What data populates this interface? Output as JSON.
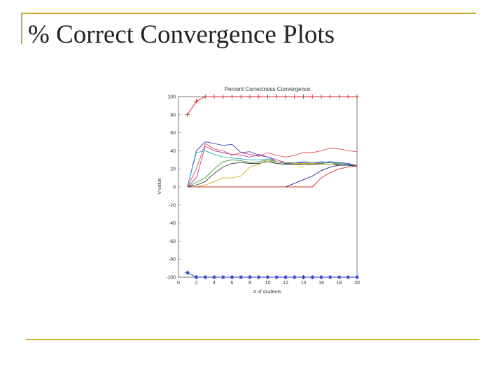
{
  "slide": {
    "title": "% Correct Convergence Plots"
  },
  "colors": {
    "accent_rule": "#c8b030"
  },
  "chart_data": {
    "type": "line",
    "title": "Percent Correctness Convergence",
    "xlabel": "# of students",
    "ylabel": "V-value",
    "xlim": [
      0,
      20
    ],
    "ylim": [
      -100,
      100
    ],
    "xticks": [
      0,
      2,
      4,
      6,
      8,
      10,
      12,
      14,
      16,
      18,
      20
    ],
    "yticks": [
      100,
      80,
      60,
      40,
      20,
      0,
      -20,
      -40,
      -60,
      -80,
      -100
    ],
    "grid": false,
    "legend": "none",
    "series": [
      {
        "color": "#d42020",
        "marker": "+",
        "x": [
          1,
          2,
          3,
          4,
          5,
          6,
          7,
          8,
          9,
          10,
          11,
          12,
          13,
          14,
          15,
          16,
          17,
          18,
          19,
          20
        ],
        "y": [
          80,
          95,
          100,
          100,
          100,
          100,
          100,
          100,
          100,
          100,
          100,
          100,
          100,
          100,
          100,
          100,
          100,
          100,
          100,
          100
        ]
      },
      {
        "color": "#2030c0",
        "marker": "*",
        "x": [
          1,
          2,
          3,
          4,
          5,
          6,
          7,
          8,
          9,
          10,
          11,
          12,
          13,
          14,
          15,
          16,
          17,
          18,
          19,
          20
        ],
        "y": [
          -95,
          -100,
          -100,
          -100,
          -100,
          -100,
          -100,
          -100,
          -100,
          -100,
          -100,
          -100,
          -100,
          -100,
          -100,
          -100,
          -100,
          -100,
          -100,
          -100
        ]
      },
      {
        "color": "#4040c0",
        "x": [
          1,
          2,
          3,
          4,
          5,
          6,
          7,
          8,
          9,
          10,
          11,
          12,
          13,
          14,
          15,
          16,
          17,
          18,
          19,
          20
        ],
        "y": [
          0,
          40,
          50,
          48,
          46,
          47,
          38,
          39,
          35,
          33,
          28,
          26,
          26,
          28,
          27,
          27,
          28,
          27,
          26,
          24
        ]
      },
      {
        "color": "#e05050",
        "x": [
          1,
          2,
          3,
          4,
          5,
          6,
          7,
          8,
          9,
          10,
          11,
          12,
          13,
          14,
          15,
          16,
          17,
          18,
          19,
          20
        ],
        "y": [
          0,
          20,
          48,
          42,
          40,
          35,
          38,
          36,
          34,
          38,
          35,
          33,
          35,
          38,
          38,
          40,
          43,
          42,
          40,
          39
        ]
      },
      {
        "color": "#b040b0",
        "x": [
          1,
          2,
          3,
          4,
          5,
          6,
          7,
          8,
          9,
          10,
          11,
          12,
          13,
          14,
          15,
          16,
          17,
          18,
          19,
          20
        ],
        "y": [
          0,
          10,
          45,
          40,
          38,
          36,
          35,
          33,
          36,
          33,
          30,
          27,
          26,
          27,
          26,
          26,
          27,
          26,
          25,
          24
        ]
      },
      {
        "color": "#30b0c0",
        "x": [
          1,
          2,
          3,
          4,
          5,
          6,
          7,
          8,
          9,
          10,
          11,
          12,
          13,
          14,
          15,
          16,
          17,
          18,
          19,
          20
        ],
        "y": [
          0,
          38,
          40,
          36,
          33,
          32,
          31,
          30,
          30,
          31,
          28,
          27,
          27,
          28,
          27,
          28,
          27,
          26,
          25,
          24
        ]
      },
      {
        "color": "#30a030",
        "x": [
          1,
          2,
          3,
          4,
          5,
          6,
          7,
          8,
          9,
          10,
          11,
          12,
          13,
          14,
          15,
          16,
          17,
          18,
          19,
          20
        ],
        "y": [
          0,
          5,
          10,
          20,
          28,
          30,
          29,
          27,
          28,
          30,
          26,
          25,
          25,
          26,
          25,
          26,
          27,
          25,
          24,
          23
        ]
      },
      {
        "color": "#404040",
        "x": [
          1,
          2,
          3,
          4,
          5,
          6,
          7,
          8,
          9,
          10,
          11,
          12,
          13,
          14,
          15,
          16,
          17,
          18,
          19,
          20
        ],
        "y": [
          0,
          2,
          6,
          15,
          22,
          26,
          27,
          26,
          26,
          28,
          26,
          25,
          25,
          25,
          25,
          25,
          25,
          24,
          24,
          23
        ]
      },
      {
        "color": "#d0b020",
        "x": [
          1,
          2,
          3,
          4,
          5,
          6,
          7,
          8,
          9,
          10,
          11,
          12,
          13,
          14,
          15,
          16,
          17,
          18,
          19,
          20
        ],
        "y": [
          0,
          0,
          2,
          6,
          10,
          10,
          12,
          22,
          25,
          30,
          28,
          27,
          26,
          26,
          26,
          25,
          25,
          25,
          24,
          24
        ]
      },
      {
        "color": "#202080",
        "x": [
          1,
          2,
          3,
          4,
          5,
          6,
          7,
          8,
          9,
          10,
          11,
          12,
          13,
          14,
          15,
          16,
          17,
          18,
          19,
          20
        ],
        "y": [
          0,
          0,
          0,
          0,
          0,
          0,
          0,
          0,
          0,
          0,
          0,
          0,
          4,
          8,
          12,
          18,
          22,
          24,
          24,
          23
        ]
      },
      {
        "color": "#d03030",
        "x": [
          1,
          2,
          3,
          4,
          5,
          6,
          7,
          8,
          9,
          10,
          11,
          12,
          13,
          14,
          15,
          16,
          17,
          18,
          19,
          20
        ],
        "y": [
          0,
          0,
          0,
          0,
          0,
          0,
          0,
          0,
          0,
          0,
          0,
          0,
          0,
          0,
          0,
          10,
          16,
          20,
          22,
          23
        ]
      }
    ]
  }
}
